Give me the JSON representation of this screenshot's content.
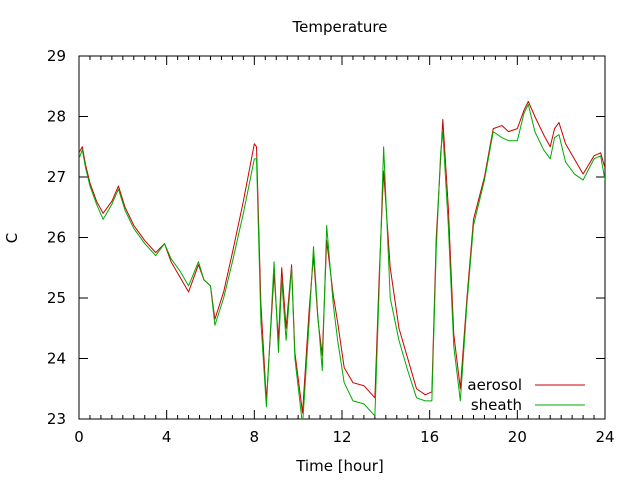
{
  "chart_data": {
    "type": "line",
    "title": "Temperature",
    "xlabel": "Time [hour]",
    "ylabel": "C",
    "xlim": [
      0,
      24
    ],
    "ylim": [
      23,
      29
    ],
    "xticks": [
      0,
      4,
      8,
      12,
      16,
      20,
      24
    ],
    "yticks": [
      23,
      24,
      25,
      26,
      27,
      28,
      29
    ],
    "grid": false,
    "legend_position": "bottom-right",
    "series": [
      {
        "name": "aerosol",
        "color": "#cc0000",
        "x": [
          0,
          0.15,
          0.3,
          0.5,
          0.8,
          1.1,
          1.5,
          1.8,
          2.1,
          2.5,
          3.0,
          3.5,
          3.9,
          4.2,
          4.6,
          5.0,
          5.45,
          5.7,
          6.0,
          6.2,
          6.6,
          7.0,
          7.5,
          8.0,
          8.1,
          8.3,
          8.55,
          8.9,
          9.1,
          9.25,
          9.45,
          9.7,
          9.85,
          10.2,
          10.5,
          10.7,
          10.9,
          11.1,
          11.3,
          11.6,
          11.8,
          12.1,
          12.5,
          13.0,
          13.5,
          13.7,
          13.9,
          14.2,
          14.6,
          15.0,
          15.4,
          15.8,
          16.1,
          16.3,
          16.5,
          16.6,
          16.85,
          17.1,
          17.4,
          17.7,
          18.0,
          18.5,
          18.9,
          19.3,
          19.6,
          20.0,
          20.3,
          20.5,
          20.8,
          21.2,
          21.5,
          21.7,
          21.9,
          22.2,
          22.6,
          23.0,
          23.5,
          23.8,
          24.0
        ],
        "values": [
          27.4,
          27.5,
          27.2,
          26.9,
          26.6,
          26.4,
          26.6,
          26.85,
          26.5,
          26.2,
          25.95,
          25.75,
          25.9,
          25.6,
          25.35,
          25.1,
          25.55,
          25.3,
          25.2,
          24.65,
          25.1,
          25.75,
          26.6,
          27.55,
          27.5,
          24.9,
          23.3,
          25.4,
          24.3,
          25.5,
          24.5,
          25.55,
          24.1,
          23.1,
          24.8,
          25.7,
          24.65,
          24.05,
          25.95,
          25.05,
          24.6,
          23.85,
          23.6,
          23.55,
          23.35,
          25.4,
          27.1,
          25.5,
          24.5,
          24.0,
          23.5,
          23.4,
          23.45,
          26.0,
          27.3,
          27.95,
          26.5,
          24.4,
          23.5,
          25.0,
          26.3,
          27.0,
          27.8,
          27.85,
          27.75,
          27.8,
          28.1,
          28.25,
          28.0,
          27.7,
          27.5,
          27.8,
          27.9,
          27.55,
          27.3,
          27.05,
          27.35,
          27.4,
          27.15
        ]
      },
      {
        "name": "sheath",
        "color": "#00aa00",
        "x": [
          0,
          0.15,
          0.3,
          0.5,
          0.8,
          1.1,
          1.5,
          1.8,
          2.1,
          2.5,
          3.0,
          3.5,
          3.9,
          4.2,
          4.6,
          5.0,
          5.45,
          5.7,
          6.0,
          6.2,
          6.6,
          7.0,
          7.5,
          8.0,
          8.1,
          8.3,
          8.55,
          8.9,
          9.1,
          9.25,
          9.45,
          9.7,
          9.85,
          10.2,
          10.5,
          10.7,
          10.9,
          11.1,
          11.3,
          11.6,
          11.8,
          12.1,
          12.5,
          13.0,
          13.5,
          13.7,
          13.9,
          14.2,
          14.6,
          15.0,
          15.4,
          15.8,
          16.1,
          16.3,
          16.5,
          16.6,
          16.85,
          17.1,
          17.4,
          17.7,
          18.0,
          18.5,
          18.9,
          19.3,
          19.6,
          20.0,
          20.3,
          20.5,
          20.8,
          21.2,
          21.5,
          21.7,
          21.9,
          22.2,
          22.6,
          23.0,
          23.5,
          23.8,
          24.0
        ],
        "values": [
          27.3,
          27.45,
          27.15,
          26.85,
          26.55,
          26.3,
          26.55,
          26.8,
          26.45,
          26.15,
          25.9,
          25.7,
          25.9,
          25.65,
          25.45,
          25.2,
          25.6,
          25.3,
          25.2,
          24.55,
          25.0,
          25.6,
          26.4,
          27.3,
          27.3,
          24.6,
          23.2,
          25.6,
          24.1,
          25.3,
          24.3,
          25.5,
          24.0,
          22.9,
          24.6,
          25.85,
          24.7,
          23.8,
          26.2,
          24.9,
          24.3,
          23.6,
          23.3,
          23.25,
          23.05,
          25.2,
          27.5,
          25.0,
          24.3,
          23.8,
          23.35,
          23.3,
          23.3,
          25.8,
          27.4,
          27.75,
          26.2,
          24.2,
          23.3,
          24.9,
          26.2,
          26.95,
          27.75,
          27.65,
          27.6,
          27.6,
          28.05,
          28.2,
          27.75,
          27.45,
          27.3,
          27.65,
          27.7,
          27.25,
          27.05,
          26.95,
          27.3,
          27.35,
          26.95
        ]
      }
    ]
  }
}
